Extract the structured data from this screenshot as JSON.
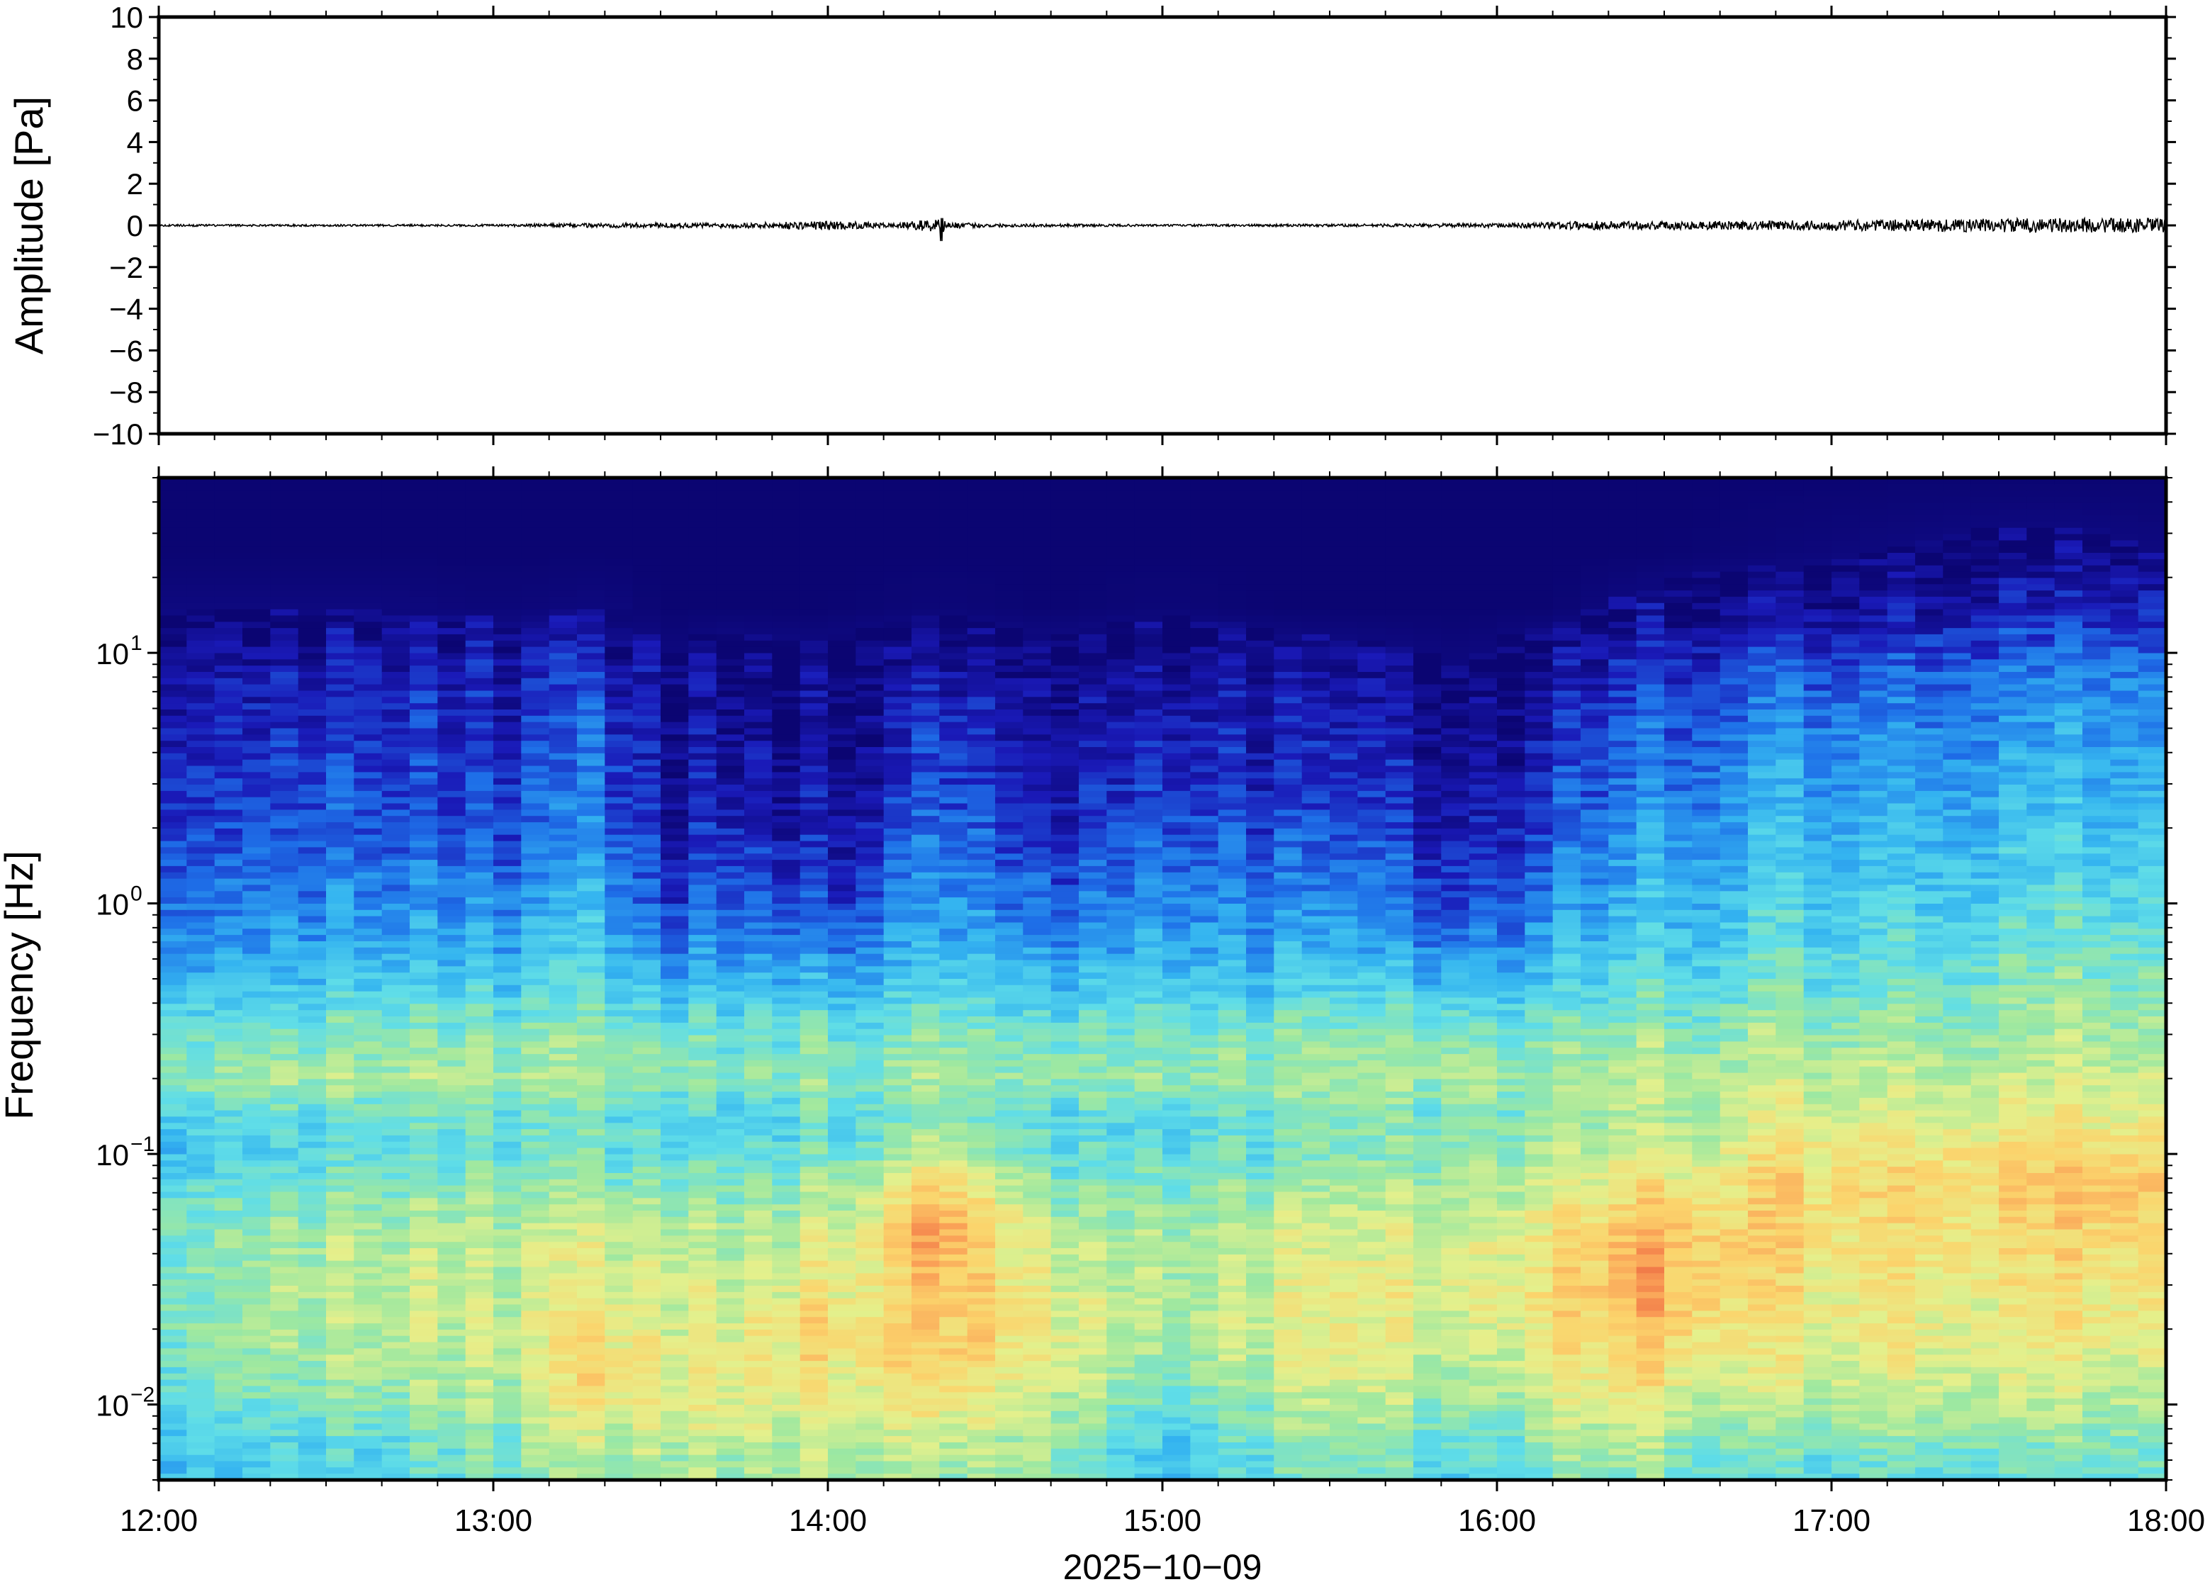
{
  "chart_data": [
    {
      "type": "line",
      "ylabel": "Amplitude [Pa]",
      "ylim": [
        -10,
        10
      ],
      "yticks": [
        10,
        8,
        6,
        4,
        2,
        0,
        -2,
        -4,
        -6,
        -8,
        -10
      ],
      "ytick_labels": [
        "10",
        "8",
        "6",
        "4",
        "2",
        "0",
        "−2",
        "−4",
        "−6",
        "−8",
        "−10"
      ],
      "xlim_hours": [
        12,
        18
      ],
      "series": [
        {
          "color": "#000000",
          "x_hours": [
            12.0,
            12.5,
            13.0,
            13.4,
            13.75,
            14.0,
            14.2,
            14.33,
            14.34,
            14.36,
            14.5,
            15.0,
            15.5,
            16.0,
            16.3,
            16.6,
            17.0,
            17.3,
            17.6,
            18.0
          ],
          "envelope_pa": [
            0.05,
            0.05,
            0.05,
            0.12,
            0.12,
            0.22,
            0.1,
            0.35,
            -0.75,
            0.15,
            0.08,
            0.05,
            0.06,
            0.1,
            0.22,
            0.2,
            0.25,
            0.3,
            0.35,
            0.35
          ]
        }
      ]
    },
    {
      "type": "heatmap",
      "ylabel": "Frequency [Hz]",
      "y_scale": "log",
      "ylim_hz": [
        0.005,
        50
      ],
      "yticks": [
        {
          "base": "10",
          "exp": "1",
          "value": 10
        },
        {
          "base": "10",
          "exp": "0",
          "value": 1
        },
        {
          "base": "10",
          "exp": "−1",
          "value": 0.1
        },
        {
          "base": "10",
          "exp": "−2",
          "value": 0.01
        }
      ],
      "xlim_hours": [
        12,
        18
      ],
      "xticks": [
        "12:00",
        "13:00",
        "14:00",
        "15:00",
        "16:00",
        "17:00",
        "18:00"
      ],
      "xlabel": "2025−10−09",
      "colormap": "jet",
      "colors": [
        "#0b0572",
        "#1a1ab8",
        "#1e6fe8",
        "#34b4f0",
        "#5fdde8",
        "#9ee8a0",
        "#e4f08c",
        "#fbd46c",
        "#fa9e56",
        "#e85a3c"
      ],
      "column_hours": [
        12.0,
        12.333,
        12.667,
        13.0,
        13.333,
        13.5,
        13.667,
        14.0,
        14.333,
        14.667,
        15.0,
        15.333,
        15.667,
        15.917,
        16.167,
        16.5,
        16.833,
        17.167,
        17.5,
        17.75,
        18.0
      ],
      "psd_levels": {
        "freq_hz": [
          0.005,
          0.007,
          0.01,
          0.015,
          0.02,
          0.03,
          0.05,
          0.07,
          0.1,
          0.14,
          0.2,
          0.3,
          0.5,
          0.7,
          1,
          2,
          4,
          8,
          15,
          25,
          50
        ],
        "levels": [
          [
            0.4,
            0.43,
            0.48,
            0.52,
            0.55,
            0.55,
            0.54,
            0.5,
            0.4,
            0.45,
            0.58,
            0.52,
            0.38,
            0.32,
            0.28,
            0.2,
            0.15,
            0.12,
            0.02,
            0,
            0
          ],
          [
            0.4,
            0.42,
            0.5,
            0.55,
            0.58,
            0.58,
            0.55,
            0.5,
            0.42,
            0.45,
            0.58,
            0.5,
            0.36,
            0.3,
            0.26,
            0.18,
            0.14,
            0.1,
            0.02,
            0,
            0
          ],
          [
            0.38,
            0.44,
            0.52,
            0.58,
            0.6,
            0.62,
            0.58,
            0.52,
            0.44,
            0.46,
            0.58,
            0.52,
            0.38,
            0.32,
            0.27,
            0.2,
            0.15,
            0.11,
            0.02,
            0,
            0
          ],
          [
            0.48,
            0.5,
            0.55,
            0.58,
            0.6,
            0.6,
            0.57,
            0.52,
            0.46,
            0.46,
            0.56,
            0.5,
            0.36,
            0.3,
            0.24,
            0.16,
            0.12,
            0.08,
            0.01,
            0,
            0
          ],
          [
            0.55,
            0.6,
            0.7,
            0.75,
            0.72,
            0.68,
            0.62,
            0.55,
            0.48,
            0.46,
            0.56,
            0.52,
            0.42,
            0.38,
            0.34,
            0.26,
            0.2,
            0.14,
            0.02,
            0,
            0
          ],
          [
            0.55,
            0.58,
            0.64,
            0.66,
            0.64,
            0.62,
            0.58,
            0.52,
            0.44,
            0.4,
            0.52,
            0.46,
            0.3,
            0.2,
            0.12,
            0.06,
            0.04,
            0.02,
            0,
            0,
            0
          ],
          [
            0.58,
            0.62,
            0.68,
            0.7,
            0.68,
            0.66,
            0.6,
            0.55,
            0.46,
            0.44,
            0.54,
            0.5,
            0.36,
            0.3,
            0.24,
            0.16,
            0.1,
            0.06,
            0,
            0,
            0
          ],
          [
            0.6,
            0.64,
            0.7,
            0.74,
            0.76,
            0.7,
            0.64,
            0.58,
            0.5,
            0.46,
            0.56,
            0.5,
            0.34,
            0.26,
            0.18,
            0.1,
            0.06,
            0.04,
            0,
            0,
            0
          ],
          [
            0.55,
            0.62,
            0.72,
            0.78,
            0.8,
            0.82,
            0.88,
            0.8,
            0.62,
            0.52,
            0.58,
            0.52,
            0.4,
            0.34,
            0.3,
            0.22,
            0.16,
            0.1,
            0.01,
            0,
            0
          ],
          [
            0.54,
            0.58,
            0.64,
            0.7,
            0.72,
            0.68,
            0.62,
            0.56,
            0.48,
            0.46,
            0.56,
            0.5,
            0.36,
            0.28,
            0.22,
            0.14,
            0.08,
            0.05,
            0,
            0,
            0
          ],
          [
            0.35,
            0.4,
            0.48,
            0.55,
            0.58,
            0.6,
            0.58,
            0.54,
            0.46,
            0.46,
            0.56,
            0.52,
            0.4,
            0.34,
            0.3,
            0.22,
            0.15,
            0.1,
            0.01,
            0,
            0
          ],
          [
            0.45,
            0.5,
            0.56,
            0.62,
            0.64,
            0.64,
            0.6,
            0.55,
            0.48,
            0.46,
            0.56,
            0.5,
            0.36,
            0.3,
            0.24,
            0.16,
            0.1,
            0.06,
            0,
            0,
            0
          ],
          [
            0.46,
            0.52,
            0.58,
            0.64,
            0.66,
            0.66,
            0.62,
            0.56,
            0.5,
            0.48,
            0.56,
            0.5,
            0.36,
            0.28,
            0.22,
            0.14,
            0.08,
            0.04,
            0,
            0,
            0
          ],
          [
            0.38,
            0.44,
            0.52,
            0.58,
            0.62,
            0.66,
            0.64,
            0.58,
            0.52,
            0.5,
            0.58,
            0.5,
            0.34,
            0.24,
            0.16,
            0.08,
            0.04,
            0.02,
            0,
            0,
            0
          ],
          [
            0.52,
            0.58,
            0.66,
            0.72,
            0.74,
            0.76,
            0.72,
            0.68,
            0.62,
            0.56,
            0.58,
            0.52,
            0.4,
            0.34,
            0.28,
            0.2,
            0.14,
            0.08,
            0,
            0,
            0
          ],
          [
            0.5,
            0.58,
            0.66,
            0.74,
            0.8,
            0.86,
            0.84,
            0.72,
            0.64,
            0.58,
            0.6,
            0.54,
            0.44,
            0.4,
            0.36,
            0.28,
            0.22,
            0.16,
            0.04,
            0,
            0
          ],
          [
            0.42,
            0.5,
            0.6,
            0.66,
            0.68,
            0.72,
            0.74,
            0.76,
            0.72,
            0.64,
            0.62,
            0.56,
            0.46,
            0.42,
            0.4,
            0.34,
            0.28,
            0.2,
            0.06,
            0.01,
            0
          ],
          [
            0.46,
            0.52,
            0.62,
            0.68,
            0.7,
            0.72,
            0.74,
            0.76,
            0.74,
            0.66,
            0.62,
            0.56,
            0.48,
            0.44,
            0.4,
            0.34,
            0.28,
            0.22,
            0.08,
            0.02,
            0
          ],
          [
            0.48,
            0.54,
            0.62,
            0.68,
            0.7,
            0.72,
            0.76,
            0.78,
            0.76,
            0.68,
            0.64,
            0.58,
            0.52,
            0.48,
            0.44,
            0.38,
            0.32,
            0.26,
            0.12,
            0.03,
            0
          ],
          [
            0.46,
            0.52,
            0.6,
            0.66,
            0.7,
            0.72,
            0.76,
            0.8,
            0.76,
            0.68,
            0.64,
            0.58,
            0.52,
            0.48,
            0.44,
            0.38,
            0.32,
            0.26,
            0.12,
            0.03,
            0
          ],
          [
            0.44,
            0.5,
            0.58,
            0.64,
            0.68,
            0.72,
            0.76,
            0.78,
            0.74,
            0.66,
            0.62,
            0.56,
            0.5,
            0.46,
            0.42,
            0.36,
            0.3,
            0.24,
            0.1,
            0.02,
            0
          ]
        ]
      }
    }
  ]
}
